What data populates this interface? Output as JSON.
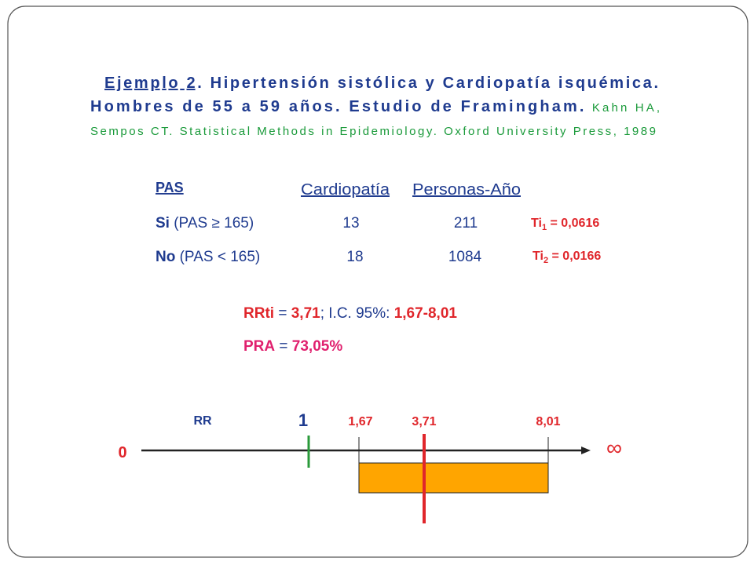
{
  "heading": {
    "lines": [
      [
        "Ejemplo 2",
        ". Hipertensión sistólica y Cardiopatía isquémica."
      ],
      [
        "Hombres de 55 a 59 años. Estudio de Framingham.",
        " Kahn HA,"
      ],
      [
        "Sempos CT. Statistical Methods in Epidemiology. Oxford University Press, 1989"
      ]
    ]
  },
  "table": {
    "headers": [
      "PAS",
      "Cardiopatía",
      "Personas-Año"
    ],
    "rows": [
      [
        "Si",
        " (PAS ≥ 165)",
        "13",
        "211"
      ],
      [
        "No",
        " (PAS < 165)",
        "18",
        "1084"
      ]
    ],
    "rates": [
      [
        "Ti",
        "1",
        " = 0,0616"
      ],
      [
        "Ti",
        "2",
        " = 0,0166"
      ]
    ]
  },
  "results": {
    "rrti": [
      "RRti",
      " = ",
      "3,71",
      ";  I.C. 95%: ",
      "1,67-8,01"
    ],
    "pra": [
      "PRA",
      " = ",
      "73,05%"
    ]
  },
  "diagram": {
    "axis_label": "RR",
    "null_value": "1",
    "lower": "1,67",
    "estimate": "3,71",
    "upper": "8,01",
    "origin": "0",
    "infinity": "∞"
  }
}
